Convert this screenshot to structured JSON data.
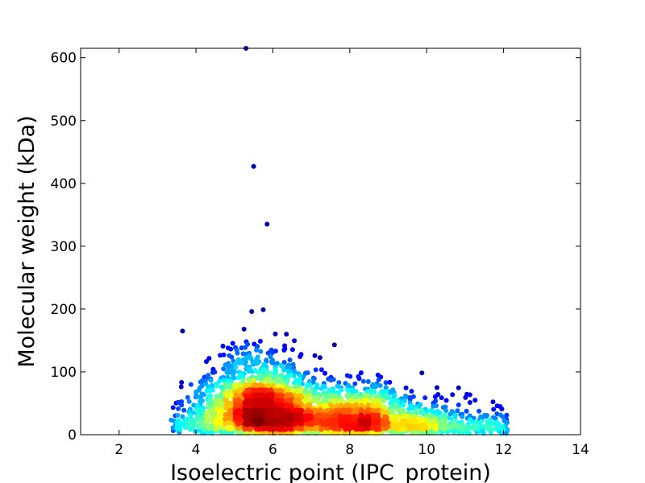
{
  "chart_data": {
    "type": "scatter",
    "title": "",
    "xlabel": "Isoelectric point (IPC_protein)",
    "ylabel": "Molecular weight (kDa)",
    "xlim": [
      1,
      14
    ],
    "ylim": [
      0,
      615
    ],
    "xticks": [
      2,
      4,
      6,
      8,
      10,
      12,
      14
    ],
    "yticks": [
      0,
      100,
      200,
      300,
      400,
      500,
      600
    ],
    "grid": false,
    "legend": "none",
    "colormap": "jet (point density: blue = low, red = high)",
    "colors": {
      "low": "#00008f",
      "mid": "#00e5ff",
      "high": "#c00000"
    },
    "notable_points": [
      {
        "x": 5.3,
        "y": 615
      },
      {
        "x": 5.5,
        "y": 427
      },
      {
        "x": 5.85,
        "y": 335
      },
      {
        "x": 3.65,
        "y": 165
      },
      {
        "x": 5.45,
        "y": 196
      },
      {
        "x": 5.75,
        "y": 199
      },
      {
        "x": 6.35,
        "y": 160
      },
      {
        "x": 5.25,
        "y": 168
      },
      {
        "x": 7.6,
        "y": 143
      },
      {
        "x": 4.7,
        "y": 141
      },
      {
        "x": 12.1,
        "y": 8
      }
    ],
    "clusters": [
      {
        "center_x": 5.6,
        "center_y": 28,
        "description": "highest density"
      },
      {
        "center_x": 8.5,
        "center_y": 18,
        "description": "secondary density"
      }
    ]
  }
}
